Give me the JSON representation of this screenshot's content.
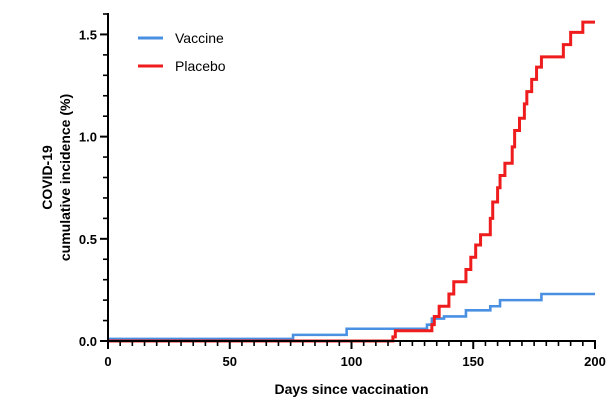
{
  "chart_data": {
    "type": "line",
    "xlabel": "Days since vaccination",
    "ylabel_lines": [
      "COVID-19",
      "cumulative incidence (%)"
    ],
    "xlim": [
      0,
      200
    ],
    "ylim": [
      0,
      1.6
    ],
    "x_ticks": [
      0,
      50,
      100,
      150,
      200
    ],
    "x_tick_labels": [
      "0",
      "50",
      "100",
      "150",
      "200"
    ],
    "x_minor_step": 5,
    "y_ticks": [
      0,
      0.5,
      1.0,
      1.5
    ],
    "y_tick_labels": [
      "0.0",
      "0.5",
      "1.0",
      "1.5"
    ],
    "y_minor_step": 0.1,
    "grid": false,
    "legend_position": "top-left",
    "step": true,
    "series": [
      {
        "name": "Vaccine",
        "color": "#4a90e2",
        "points": [
          [
            0,
            0.01
          ],
          [
            76,
            0.01
          ],
          [
            76,
            0.03
          ],
          [
            98,
            0.03
          ],
          [
            98,
            0.06
          ],
          [
            131,
            0.06
          ],
          [
            131,
            0.08
          ],
          [
            133,
            0.08
          ],
          [
            133,
            0.11
          ],
          [
            138,
            0.11
          ],
          [
            138,
            0.12
          ],
          [
            147,
            0.12
          ],
          [
            147,
            0.15
          ],
          [
            157,
            0.15
          ],
          [
            157,
            0.17
          ],
          [
            161,
            0.17
          ],
          [
            161,
            0.2
          ],
          [
            178,
            0.2
          ],
          [
            178,
            0.23
          ],
          [
            200,
            0.23
          ]
        ]
      },
      {
        "name": "Placebo",
        "color": "#ee1c1c",
        "points": [
          [
            0,
            0
          ],
          [
            117,
            0
          ],
          [
            117,
            0.02
          ],
          [
            118,
            0.02
          ],
          [
            118,
            0.05
          ],
          [
            133,
            0.05
          ],
          [
            133,
            0.08
          ],
          [
            134,
            0.08
          ],
          [
            134,
            0.12
          ],
          [
            136,
            0.12
          ],
          [
            136,
            0.17
          ],
          [
            140,
            0.17
          ],
          [
            140,
            0.23
          ],
          [
            142,
            0.23
          ],
          [
            142,
            0.29
          ],
          [
            147,
            0.29
          ],
          [
            147,
            0.35
          ],
          [
            149,
            0.35
          ],
          [
            149,
            0.41
          ],
          [
            151,
            0.41
          ],
          [
            151,
            0.47
          ],
          [
            153,
            0.47
          ],
          [
            153,
            0.52
          ],
          [
            157,
            0.52
          ],
          [
            157,
            0.6
          ],
          [
            158,
            0.6
          ],
          [
            158,
            0.68
          ],
          [
            160,
            0.68
          ],
          [
            160,
            0.75
          ],
          [
            161,
            0.75
          ],
          [
            161,
            0.81
          ],
          [
            163,
            0.81
          ],
          [
            163,
            0.87
          ],
          [
            166,
            0.87
          ],
          [
            166,
            0.95
          ],
          [
            167,
            0.95
          ],
          [
            167,
            1.03
          ],
          [
            169,
            1.03
          ],
          [
            169,
            1.09
          ],
          [
            171,
            1.09
          ],
          [
            171,
            1.16
          ],
          [
            172,
            1.16
          ],
          [
            172,
            1.22
          ],
          [
            174,
            1.22
          ],
          [
            174,
            1.28
          ],
          [
            176,
            1.28
          ],
          [
            176,
            1.34
          ],
          [
            178,
            1.34
          ],
          [
            178,
            1.39
          ],
          [
            187,
            1.39
          ],
          [
            187,
            1.45
          ],
          [
            190,
            1.45
          ],
          [
            190,
            1.51
          ],
          [
            195,
            1.51
          ],
          [
            195,
            1.56
          ],
          [
            200,
            1.56
          ]
        ]
      }
    ]
  }
}
